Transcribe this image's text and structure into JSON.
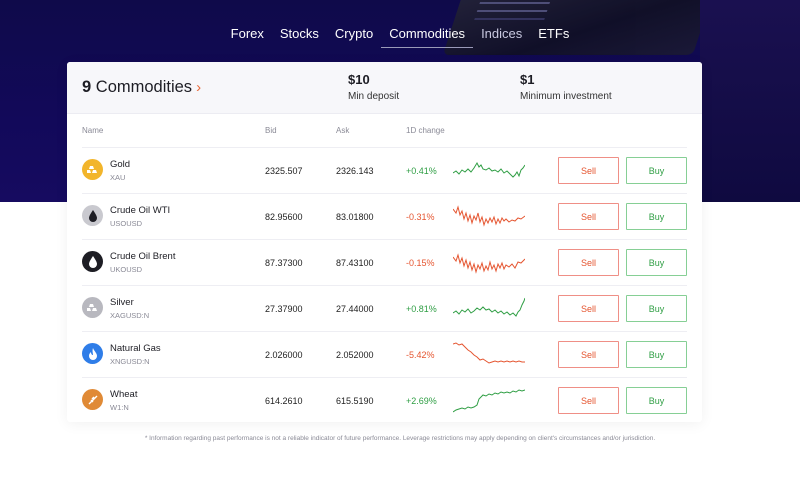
{
  "nav": {
    "tabs": [
      {
        "label": "Forex"
      },
      {
        "label": "Stocks"
      },
      {
        "label": "Crypto"
      },
      {
        "label": "Commodities",
        "active": true
      },
      {
        "label": "Indices"
      },
      {
        "label": "ETFs"
      }
    ]
  },
  "header": {
    "count": "9",
    "title": "Commodities",
    "min_deposit": {
      "value": "$10",
      "label": "Min deposit"
    },
    "min_investment": {
      "value": "$1",
      "label": "Minimum investment"
    }
  },
  "columns": {
    "name": "Name",
    "bid": "Bid",
    "ask": "Ask",
    "change": "1D change"
  },
  "rows": [
    {
      "name": "Gold",
      "symbol": "XAU",
      "bid": "2325.507",
      "ask": "2326.143",
      "change": "+0.41%",
      "direction": "up",
      "icon": "gold-bars-icon",
      "icon_color": "#f2b52b",
      "sell": "Sell",
      "buy": "Buy"
    },
    {
      "name": "Crude Oil WTI",
      "symbol": "USOUSD",
      "bid": "82.95600",
      "ask": "83.01800",
      "change": "-0.31%",
      "direction": "down",
      "icon": "oil-drop-icon",
      "icon_color": "#c9c9cf",
      "sell": "Sell",
      "buy": "Buy"
    },
    {
      "name": "Crude Oil Brent",
      "symbol": "UKOUSD",
      "bid": "87.37300",
      "ask": "87.43100",
      "change": "-0.15%",
      "direction": "down",
      "icon": "oil-drop-icon",
      "icon_color": "#1d1d24",
      "sell": "Sell",
      "buy": "Buy"
    },
    {
      "name": "Silver",
      "symbol": "XAGUSD:N",
      "bid": "27.37900",
      "ask": "27.44000",
      "change": "+0.81%",
      "direction": "up",
      "icon": "silver-bars-icon",
      "icon_color": "#b8b8bf",
      "sell": "Sell",
      "buy": "Buy"
    },
    {
      "name": "Natural Gas",
      "symbol": "XNGUSD:N",
      "bid": "2.026000",
      "ask": "2.052000",
      "change": "-5.42%",
      "direction": "down",
      "icon": "flame-icon",
      "icon_color": "#2f7de8",
      "sell": "Sell",
      "buy": "Buy"
    },
    {
      "name": "Wheat",
      "symbol": "W1:N",
      "bid": "614.2610",
      "ask": "615.5190",
      "change": "+2.69%",
      "direction": "up",
      "icon": "wheat-icon",
      "icon_color": "#e08a36",
      "sell": "Sell",
      "buy": "Buy"
    }
  ],
  "colors": {
    "up": "#2f9e44",
    "down": "#e55530",
    "accent": "#e8693a",
    "hero_bg": "#12095a"
  },
  "disclaimer": "* Information regarding past performance is not a reliable indicator of future performance. Leverage restrictions may apply depending on client's circumstances and/or jurisdiction."
}
